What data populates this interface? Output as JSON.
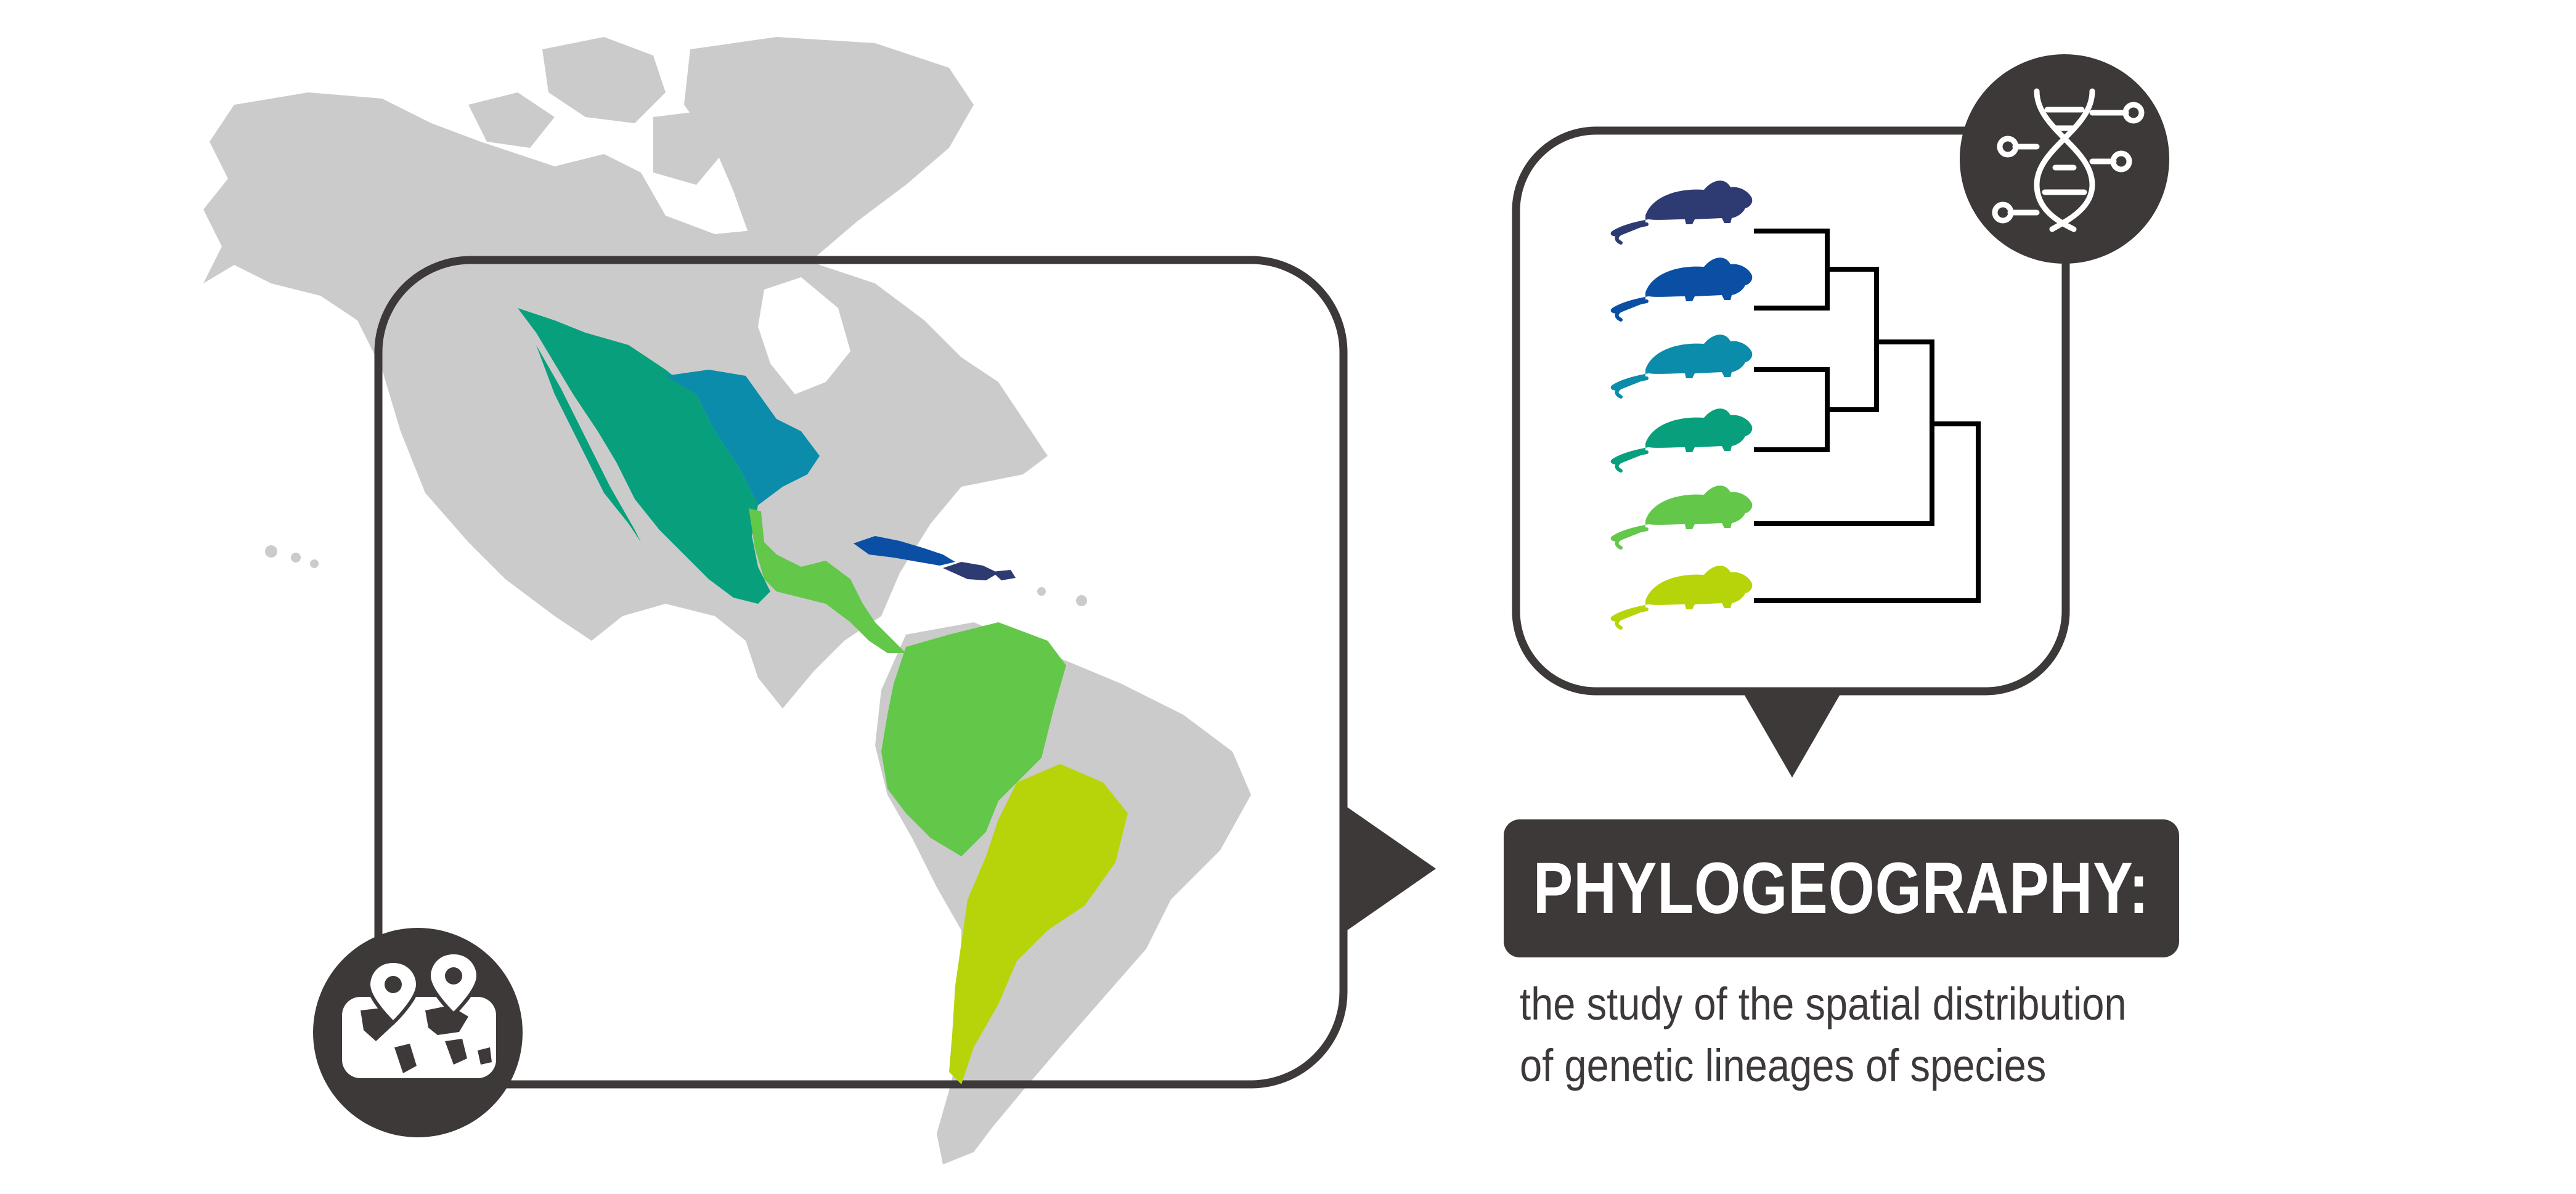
{
  "title": "PHYLOGEOGRAPHY:",
  "definition": {
    "line1": "the study of the spatial distribution",
    "line2": "of genetic lineages of species"
  },
  "icons": {
    "map_badge": "map-pins-icon",
    "tree_badge": "dna-icon",
    "specimen": "mouse-icon"
  },
  "colors": {
    "land": "#cbcbcb",
    "frame": "#3d3938",
    "lineage_navy": "#2e3a72",
    "lineage_blue": "#0a4fa3",
    "lineage_teal": "#0a8caa",
    "lineage_green_teal": "#08a07c",
    "lineage_green": "#63c74a",
    "lineage_lime": "#b7d40a"
  }
}
